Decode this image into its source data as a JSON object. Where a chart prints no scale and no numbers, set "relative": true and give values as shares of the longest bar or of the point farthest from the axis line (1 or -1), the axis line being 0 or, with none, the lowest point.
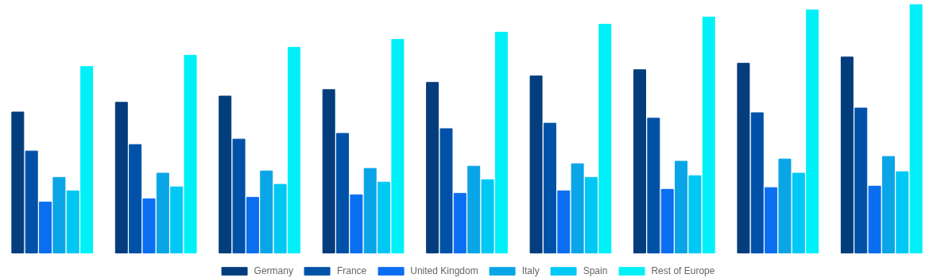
{
  "chart_data": {
    "type": "bar",
    "relative": true,
    "legend": "bottom",
    "grid": false,
    "categories": [
      null,
      null,
      null,
      null,
      null,
      null,
      null,
      null,
      null
    ],
    "series": [
      {
        "name": "Germany",
        "color": "#033d7c",
        "values": [
          0.567,
          0.606,
          0.631,
          0.657,
          0.686,
          0.712,
          0.737,
          0.763,
          0.788
        ]
      },
      {
        "name": "France",
        "color": "#0052a8",
        "values": [
          0.41,
          0.436,
          0.458,
          0.481,
          0.5,
          0.522,
          0.542,
          0.564,
          0.583
        ]
      },
      {
        "name": "United Kingdom",
        "color": "#0a6ef0",
        "values": [
          0.205,
          0.218,
          0.224,
          0.234,
          0.24,
          0.25,
          0.256,
          0.263,
          0.269
        ]
      },
      {
        "name": "Italy",
        "color": "#0aa5e6",
        "values": [
          0.304,
          0.321,
          0.33,
          0.34,
          0.349,
          0.359,
          0.369,
          0.378,
          0.388
        ]
      },
      {
        "name": "Spain",
        "color": "#00c8f5",
        "values": [
          0.25,
          0.266,
          0.276,
          0.285,
          0.295,
          0.304,
          0.311,
          0.321,
          0.327
        ]
      },
      {
        "name": "Rest of Europe",
        "color": "#00f0f8",
        "values": [
          0.75,
          0.795,
          0.827,
          0.859,
          0.888,
          0.92,
          0.949,
          0.978,
          1
        ]
      }
    ]
  }
}
